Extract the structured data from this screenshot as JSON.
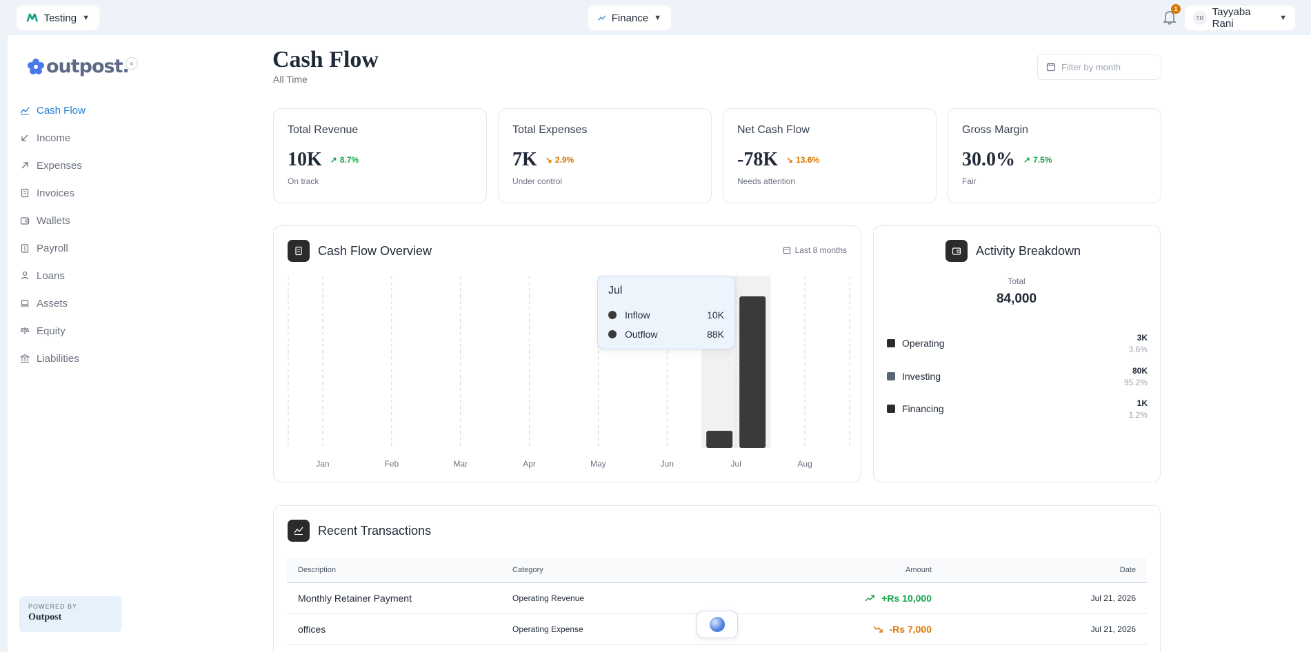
{
  "topbar": {
    "org_name": "Testing",
    "module_name": "Finance",
    "notification_count": "1",
    "user_initials": "TR",
    "user_name": "Tayyaba Rani"
  },
  "sidebar": {
    "logo_text": "outpost.",
    "items": [
      {
        "label": "Cash Flow",
        "icon": "trend-icon",
        "active": true
      },
      {
        "label": "Income",
        "icon": "arrow-down-left-icon"
      },
      {
        "label": "Expenses",
        "icon": "arrow-up-right-icon"
      },
      {
        "label": "Invoices",
        "icon": "invoice-icon"
      },
      {
        "label": "Wallets",
        "icon": "wallet-icon"
      },
      {
        "label": "Payroll",
        "icon": "payroll-icon"
      },
      {
        "label": "Loans",
        "icon": "loan-icon"
      },
      {
        "label": "Assets",
        "icon": "laptop-icon"
      },
      {
        "label": "Equity",
        "icon": "scale-icon"
      },
      {
        "label": "Liabilities",
        "icon": "bank-icon"
      }
    ],
    "powered_by_label": "POWERED BY",
    "powered_by_name": "Outpost"
  },
  "header": {
    "title": "Cash Flow",
    "subtitle": "All Time",
    "filter_placeholder": "Filter by month"
  },
  "kpis": [
    {
      "label": "Total Revenue",
      "value": "10K",
      "delta": "8.7%",
      "direction": "up",
      "note": "On track"
    },
    {
      "label": "Total Expenses",
      "value": "7K",
      "delta": "2.9%",
      "direction": "down",
      "note": "Under control"
    },
    {
      "label": "Net Cash Flow",
      "value": "-78K",
      "delta": "13.6%",
      "direction": "down",
      "note": "Needs attention"
    },
    {
      "label": "Gross Margin",
      "value": "30.0%",
      "delta": "7.5%",
      "direction": "up",
      "note": "Fair"
    }
  ],
  "overview": {
    "title": "Cash Flow Overview",
    "range_label": "Last 8 months",
    "tooltip": {
      "month": "Jul",
      "inflow_label": "Inflow",
      "inflow_value": "10K",
      "outflow_label": "Outflow",
      "outflow_value": "88K"
    }
  },
  "chart_data": {
    "type": "bar",
    "categories": [
      "Jan",
      "Feb",
      "Mar",
      "Apr",
      "May",
      "Jun",
      "Jul",
      "Aug"
    ],
    "series": [
      {
        "name": "Inflow",
        "values": [
          0,
          0,
          0,
          0,
          0,
          0,
          10,
          0
        ]
      },
      {
        "name": "Outflow",
        "values": [
          0,
          0,
          0,
          0,
          0,
          0,
          88,
          0
        ]
      }
    ],
    "ylim": [
      0,
      100
    ],
    "highlighted_category": "Jul",
    "grid": "vertical-dashed",
    "colors": {
      "bar": "#3a3a3a",
      "highlight_bg": "#f1f1f1"
    }
  },
  "breakdown": {
    "title": "Activity Breakdown",
    "total_label": "Total",
    "total_value": "84,000",
    "items": [
      {
        "name": "Operating",
        "amount": "3K",
        "percent": "3.6%",
        "color": "#2b2b2b"
      },
      {
        "name": "Investing",
        "amount": "80K",
        "percent": "95.2%",
        "color": "#5c6670"
      },
      {
        "name": "Financing",
        "amount": "1K",
        "percent": "1.2%",
        "color": "#2b2b2b"
      }
    ]
  },
  "transactions": {
    "title": "Recent Transactions",
    "columns": [
      "Description",
      "Category",
      "Amount",
      "Date"
    ],
    "rows": [
      {
        "description": "Monthly Retainer Payment",
        "category": "Operating Revenue",
        "amount": "+Rs 10,000",
        "direction": "in",
        "date": "Jul 21, 2026"
      },
      {
        "description": "offices",
        "category": "Operating Expense",
        "amount": "-Rs 7,000",
        "direction": "out",
        "date": "Jul 21, 2026"
      }
    ]
  },
  "colors": {
    "accent": "#1d7fd1",
    "positive": "#16a34a",
    "negative": "#d97706",
    "badge": "#d97706"
  }
}
